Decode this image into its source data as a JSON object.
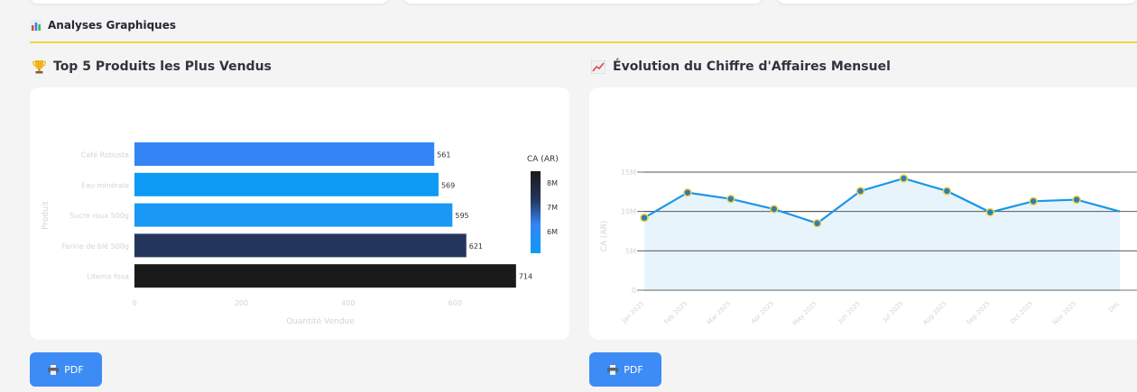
{
  "section": {
    "title": "Analyses Graphiques",
    "icon": "bar-chart-icon"
  },
  "bar_panel": {
    "title": "Top 5 Produits les Plus Vendus",
    "icon": "trophy-icon",
    "pdf_label": "PDF"
  },
  "line_panel": {
    "title": "Évolution du Chiffre d'Affaires Mensuel",
    "icon": "trend-chart-icon",
    "pdf_label": "PDF"
  },
  "colors": {
    "accent_rule": "#f5d442",
    "button": "#3d8bf5",
    "line": "#1a96e8",
    "marker_fill": "#2e7fb8",
    "marker_edge": "#f5d442",
    "area_fill": "#e6f3fc"
  },
  "chart_data": [
    {
      "type": "bar",
      "orientation": "horizontal",
      "categories": [
        "Café Robusta",
        "Eau minérale",
        "Sucre roux 500g",
        "Farine de blé 500g",
        "Litema fosa"
      ],
      "values": [
        561,
        569,
        595,
        621,
        714
      ],
      "bar_colors": [
        "#3385f5",
        "#0d9af5",
        "#1a98f5",
        "#24365c",
        "#1a1a1a"
      ],
      "xlabel": "Quantité Vendue",
      "ylabel": "Produit",
      "xticks": [
        0,
        200,
        400,
        600
      ],
      "xlim": [
        0,
        770
      ],
      "colorbar": {
        "title": "CA (AR)",
        "ticks": [
          "8M",
          "7M",
          "6M"
        ]
      }
    },
    {
      "type": "area",
      "x": [
        "Jan 2025",
        "Feb 2025",
        "Mar 2025",
        "Apr 2025",
        "May 2025",
        "Jun 2025",
        "Jul 2025",
        "Aug 2025",
        "Sep 2025",
        "Oct 2025",
        "Nov 2025",
        "Dec"
      ],
      "y": [
        9.2,
        12.4,
        11.6,
        10.3,
        8.5,
        12.6,
        14.2,
        12.6,
        9.9,
        11.3,
        11.5,
        10.0
      ],
      "ylabel": "CA (AR)",
      "yticks": [
        0,
        5,
        10,
        15
      ],
      "ytick_labels": [
        "0",
        "5M",
        "10M",
        "15M"
      ],
      "ylim": [
        0,
        15
      ],
      "grid": true
    }
  ]
}
